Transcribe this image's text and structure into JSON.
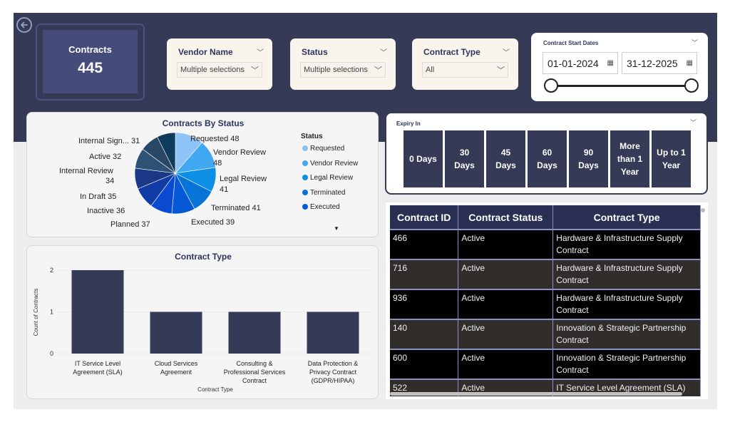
{
  "kpi": {
    "title": "Contracts",
    "value": "445"
  },
  "slicers": {
    "vendor": {
      "title": "Vendor Name",
      "value": "Multiple selections"
    },
    "status": {
      "title": "Status",
      "value": "Multiple selections"
    },
    "type": {
      "title": "Contract Type",
      "value": "All"
    }
  },
  "date_slicer": {
    "title": "Contract Start Dates",
    "start": "01-01-2024",
    "end": "31-12-2025"
  },
  "pie": {
    "title": "Contracts By Status",
    "legend_title": "Status",
    "slices": [
      {
        "label": "Requested",
        "value": 48,
        "color": "#8ec4f5"
      },
      {
        "label": "Vendor Review",
        "value": 48,
        "color": "#3fa8f0"
      },
      {
        "label": "Legal Review",
        "value": 41,
        "color": "#0d8fe6"
      },
      {
        "label": "Terminated",
        "value": 41,
        "color": "#0874d8"
      },
      {
        "label": "Executed",
        "value": 39,
        "color": "#0659d6"
      },
      {
        "label": "Planned",
        "value": 37,
        "color": "#0a4ad0"
      },
      {
        "label": "Inactive",
        "value": 36,
        "color": "#113ba6"
      },
      {
        "label": "In Draft",
        "value": 35,
        "color": "#1a3886"
      },
      {
        "label": "Internal Review",
        "value": 34,
        "color": "#2e5276"
      },
      {
        "label": "Active",
        "value": 32,
        "color": "#284866"
      },
      {
        "label": "Internal Sign...",
        "value": 31,
        "color": "#0f3a5c"
      }
    ],
    "labels": [
      "Requested 48",
      "Vendor Review",
      "48",
      "Legal Review",
      "41",
      "Terminated 41",
      "Executed 39",
      "Planned 37",
      "Inactive 36",
      "In Draft 35",
      "Internal Review",
      "34",
      "Active 32",
      "Internal Sign... 31"
    ],
    "legend": [
      "Requested",
      "Vendor Review",
      "Legal Review",
      "Terminated",
      "Executed"
    ],
    "legend_colors": [
      "#8ec4f5",
      "#3fa8f0",
      "#0d8fe6",
      "#0874d8",
      "#0659d6"
    ]
  },
  "chart_data": {
    "type": "bar",
    "title": "Contract Type",
    "xlabel": "Contract Type",
    "ylabel": "Count of Contracts",
    "ylim": [
      0,
      2
    ],
    "yticks": [
      "0",
      "1",
      "2"
    ],
    "categories": [
      [
        "IT Service Level",
        "Agreement (SLA)"
      ],
      [
        "Cloud Services",
        "Agreement"
      ],
      [
        "Consulting &",
        "Professional Services",
        "Contract"
      ],
      [
        "Data Protection &",
        "Privacy Contract",
        "(GDPR/HIPAA)"
      ]
    ],
    "values": [
      2,
      1,
      1,
      1
    ],
    "color": "#353a56"
  },
  "expiry": {
    "title": "Expiry In",
    "options": [
      [
        "0 Days"
      ],
      [
        "30",
        "Days"
      ],
      [
        "45",
        "Days"
      ],
      [
        "60",
        "Days"
      ],
      [
        "90",
        "Days"
      ],
      [
        "More",
        "than 1",
        "Year"
      ],
      [
        "Up to 1",
        "Year"
      ]
    ]
  },
  "table": {
    "headers": [
      "Contract ID",
      "Contract Status",
      "Contract Type"
    ],
    "rows": [
      [
        "466",
        "Active",
        "Hardware & Infrastructure Supply Contract"
      ],
      [
        "716",
        "Active",
        "Hardware & Infrastructure Supply Contract"
      ],
      [
        "936",
        "Active",
        "Hardware & Infrastructure Supply Contract"
      ],
      [
        "140",
        "Active",
        "Innovation & Strategic Partnership Contract"
      ],
      [
        "600",
        "Active",
        "Innovation & Strategic Partnership Contract"
      ],
      [
        "522",
        "Active",
        "IT Service Level Agreement (SLA)"
      ]
    ]
  }
}
